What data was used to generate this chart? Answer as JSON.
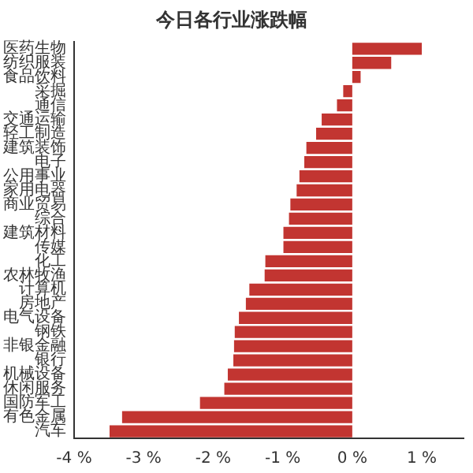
{
  "chart_data": {
    "type": "bar",
    "orientation": "horizontal",
    "title": "今日各行业涨跌幅",
    "categories": [
      "医药生物",
      "纺织服装",
      "食品饮料",
      "采掘",
      "通信",
      "交通运输",
      "轻工制造",
      "建筑装饰",
      "电子",
      "公用事业",
      "家用电器",
      "商业贸易",
      "综合",
      "建筑材料",
      "传媒",
      "化工",
      "农林牧渔",
      "计算机",
      "房地产",
      "电气设备",
      "钢铁",
      "非银金融",
      "银行",
      "机械设备",
      "休闲服务",
      "国防军工",
      "有色金属",
      "汽车"
    ],
    "values": [
      1.0,
      0.56,
      0.12,
      -0.13,
      -0.22,
      -0.44,
      -0.52,
      -0.66,
      -0.69,
      -0.76,
      -0.8,
      -0.89,
      -0.91,
      -0.99,
      -0.99,
      -1.25,
      -1.26,
      -1.48,
      -1.53,
      -1.63,
      -1.69,
      -1.7,
      -1.71,
      -1.79,
      -1.84,
      -2.19,
      -3.31,
      -3.49
    ],
    "color": "#c23531",
    "xlim": [
      -4,
      1.6
    ],
    "xticks": [
      {
        "value": -4,
        "label": "-4 %"
      },
      {
        "value": -3,
        "label": "-3 %"
      },
      {
        "value": -2,
        "label": "-2 %"
      },
      {
        "value": -1,
        "label": "-1 %"
      },
      {
        "value": 0,
        "label": "0 %"
      },
      {
        "value": 1,
        "label": "1 %"
      }
    ],
    "grid": false,
    "legend": false
  }
}
